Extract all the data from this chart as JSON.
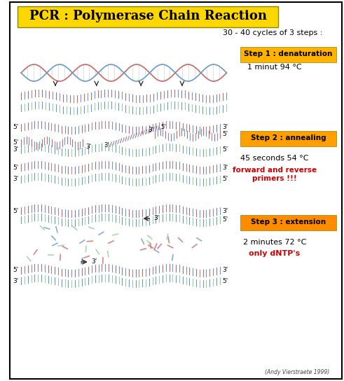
{
  "title": "PCR : Polymerase Chain Reaction",
  "title_bg": "#FFD700",
  "title_fontsize": 16,
  "subtitle": "30 - 40 cycles of 3 steps :",
  "step1_label": "Step 1 : denaturation",
  "step1_detail": "1 minut 94 °C",
  "step2_label": "Step 2 : annealing",
  "step2_detail": "45 seconds 54 °C",
  "step2_red": "forward and reverse\nprimers !!!",
  "step3_label": "Step 3 : extension",
  "step3_detail": "2 minutes 72 °C",
  "step3_red": "only dNTP's",
  "credit": "(Andy Vierstraete 1999)",
  "bg_color": "#FFFFFF",
  "border_color": "#000000",
  "step_box_color1": "#FFB300",
  "step_box_color2": "#FFA000",
  "step_box_color3": "#FF8C00",
  "red_color": "#CC0000",
  "dna_color1": "#CC6666",
  "dna_color2": "#6699CC",
  "dna_color3": "#99CC99",
  "arrow_color": "#333333"
}
